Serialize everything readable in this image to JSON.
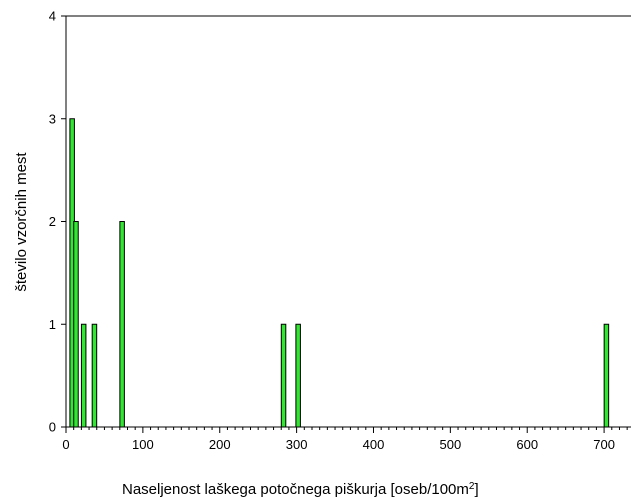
{
  "chart_data": {
    "type": "bar",
    "title": "",
    "xlabel": "Naseljenost laškega potočnega piškurja [oseb/100m",
    "xlabel_sup": "2",
    "xlabel_end": "]",
    "ylabel": "število vzorčnih mest",
    "x": [
      8,
      13,
      23,
      37,
      73,
      283,
      302,
      703
    ],
    "values": [
      3,
      2,
      1,
      1,
      2,
      1,
      1,
      1
    ],
    "xlim": [
      0,
      735
    ],
    "ylim": [
      0,
      4
    ],
    "xticks": [
      0,
      100,
      200,
      300,
      400,
      500,
      600,
      700
    ],
    "yticks": [
      0,
      1,
      2,
      3,
      4
    ],
    "bar_color": "#33e633",
    "bar_edge_color": "#000000",
    "grid": false
  }
}
